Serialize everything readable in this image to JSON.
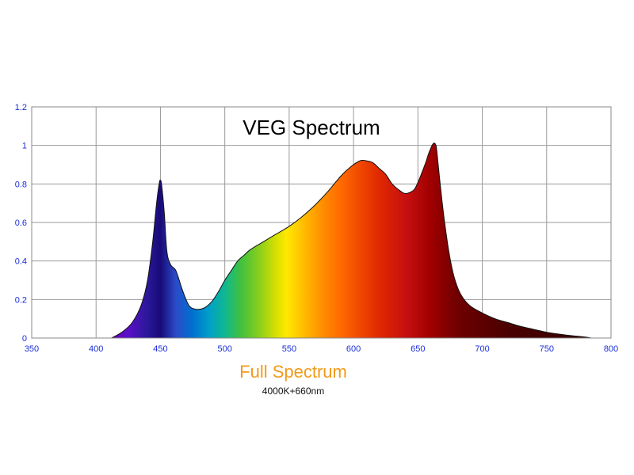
{
  "chart_data": {
    "type": "area",
    "title": "VEG Spectrum",
    "xlabel": "",
    "ylabel": "",
    "xlim": [
      350,
      800
    ],
    "ylim": [
      0,
      1.2
    ],
    "x_ticks": [
      350,
      400,
      450,
      500,
      550,
      600,
      650,
      700,
      750,
      800
    ],
    "y_ticks": [
      0,
      0.2,
      0.4,
      0.6,
      0.8,
      1,
      1.2
    ],
    "y_tick_labels": [
      "0",
      "0.2",
      "0.4",
      "0.6",
      "0.8",
      "1",
      "1.2"
    ],
    "grid": true,
    "fill": "visible-spectrum gradient",
    "series": [
      {
        "x": [
          412,
          420,
          428,
          435,
          440,
          444,
          447,
          449,
          450,
          451,
          453,
          455,
          458,
          462,
          467,
          472,
          477,
          481,
          485,
          490,
          495,
          500,
          505,
          510,
          515,
          520,
          530,
          540,
          550,
          560,
          570,
          580,
          590,
          598,
          605,
          610,
          615,
          620,
          625,
          630,
          635,
          640,
          645,
          648,
          652,
          656,
          659,
          662,
          664,
          665,
          667,
          670,
          674,
          678,
          683,
          690,
          700,
          710,
          720,
          730,
          740,
          750,
          760,
          770,
          780,
          785
        ],
        "y": [
          0.0,
          0.03,
          0.08,
          0.17,
          0.3,
          0.5,
          0.7,
          0.8,
          0.82,
          0.79,
          0.65,
          0.45,
          0.38,
          0.35,
          0.25,
          0.17,
          0.15,
          0.15,
          0.16,
          0.19,
          0.24,
          0.3,
          0.35,
          0.4,
          0.43,
          0.46,
          0.5,
          0.54,
          0.58,
          0.63,
          0.69,
          0.76,
          0.84,
          0.89,
          0.92,
          0.92,
          0.91,
          0.88,
          0.85,
          0.8,
          0.77,
          0.75,
          0.76,
          0.78,
          0.84,
          0.91,
          0.97,
          1.01,
          1.0,
          0.95,
          0.82,
          0.64,
          0.45,
          0.32,
          0.23,
          0.17,
          0.13,
          0.1,
          0.08,
          0.06,
          0.045,
          0.03,
          0.02,
          0.012,
          0.005,
          0.0
        ]
      }
    ],
    "colors": {
      "axis": "#888888",
      "grid": "#9a9a9a",
      "tick_label": "#1a2ed8",
      "outline": "#111111"
    }
  },
  "caption": {
    "line1": "Full Spectrum",
    "line2": "4000K+660nm"
  }
}
